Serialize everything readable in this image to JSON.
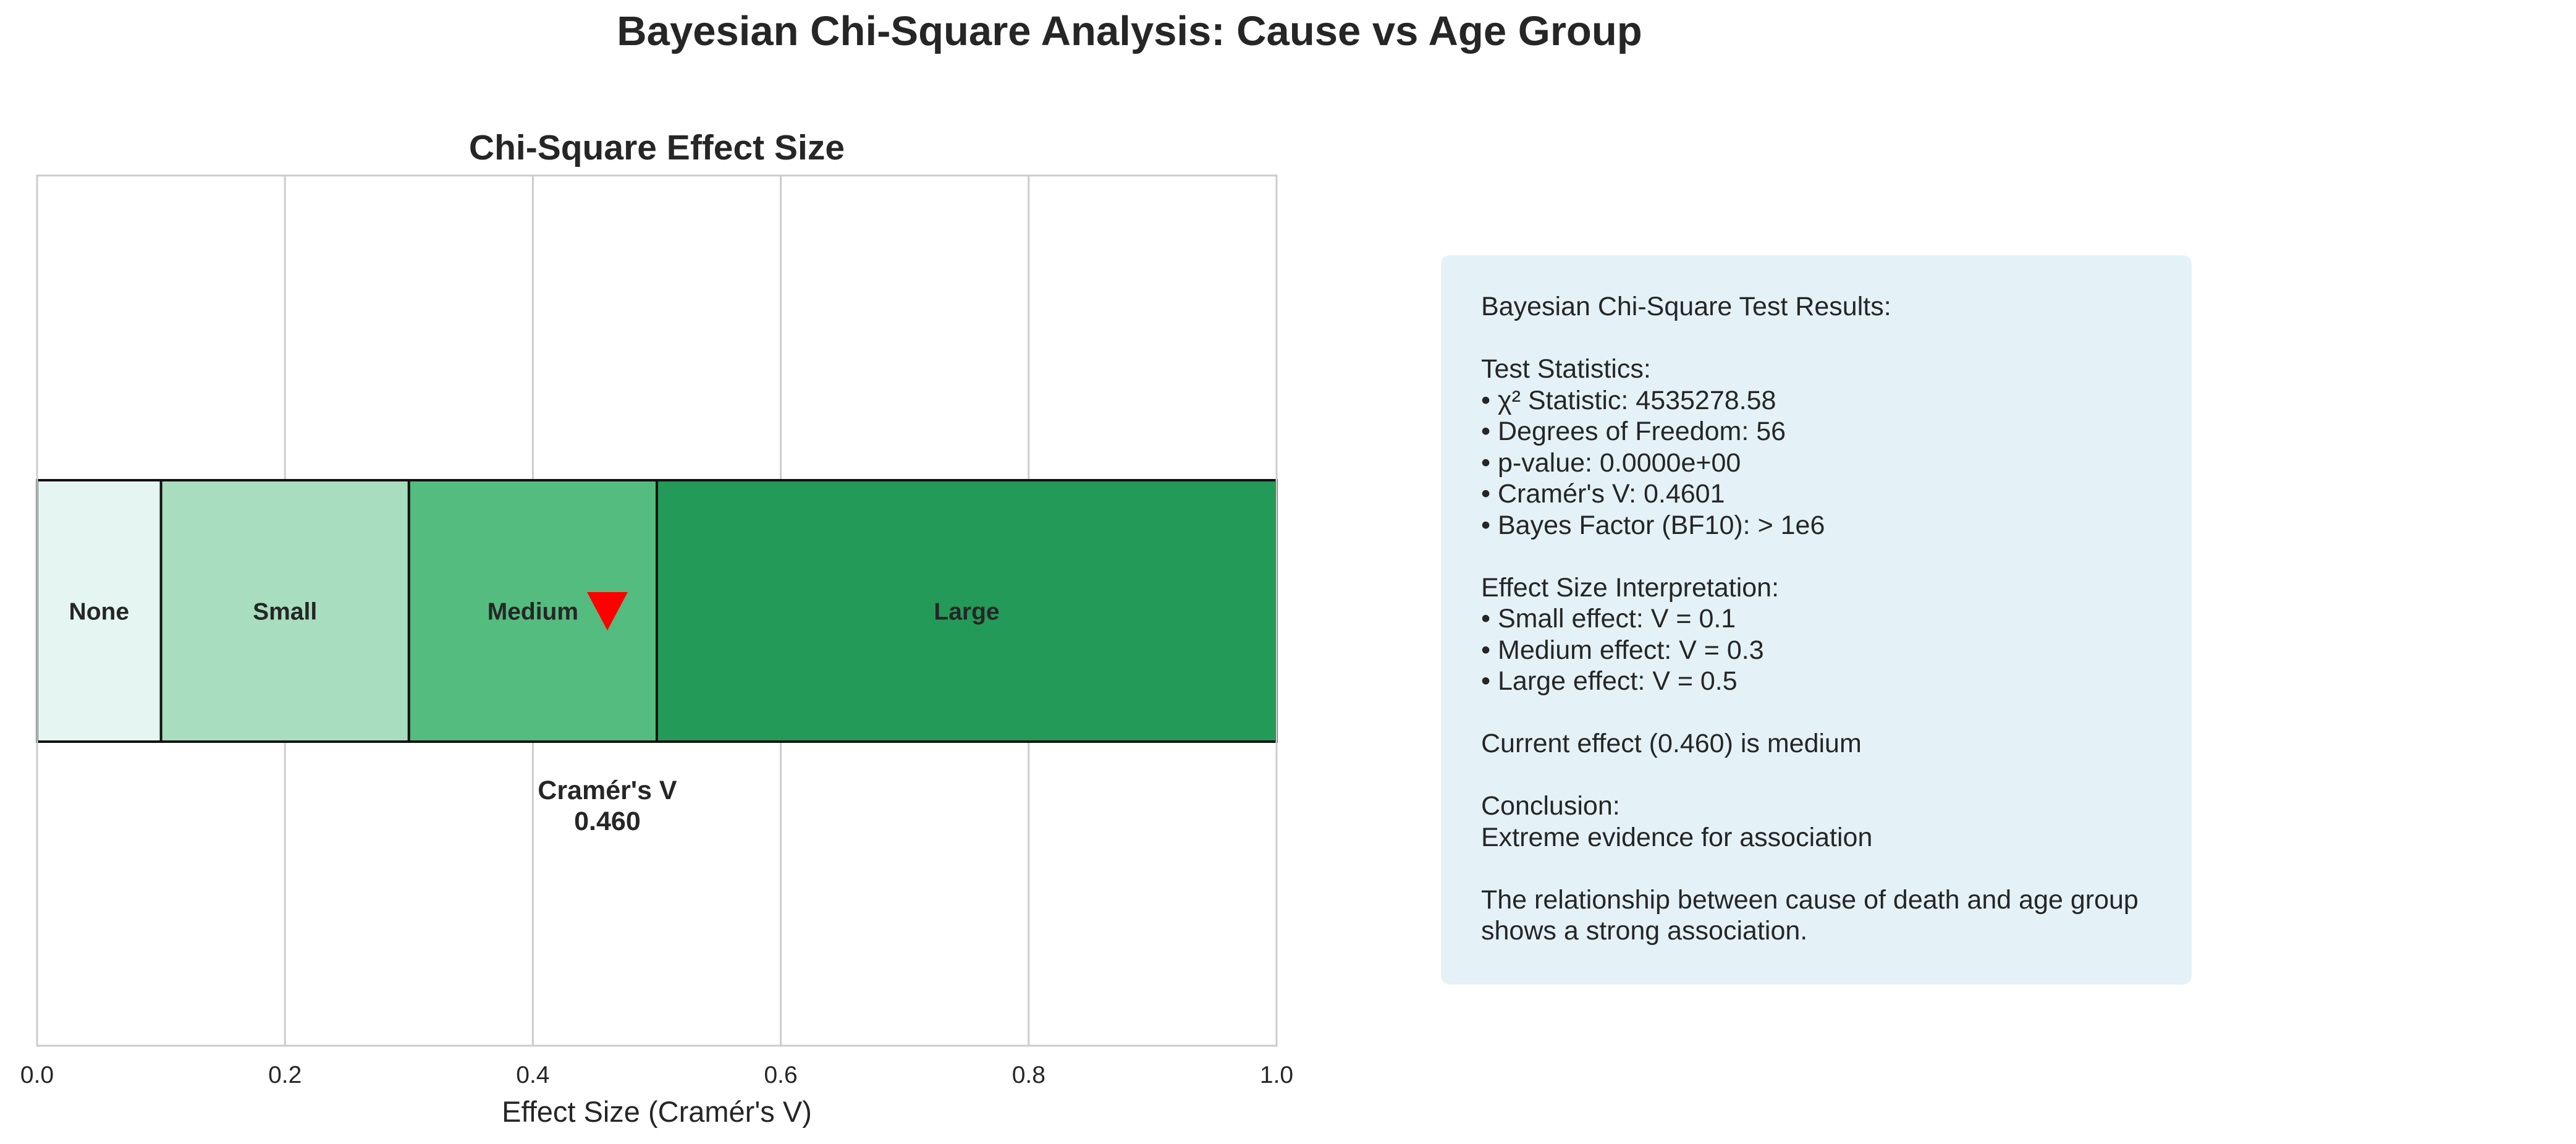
{
  "figure": {
    "suptitle": "Bayesian Chi-Square Analysis: Cause vs Age Group"
  },
  "chart_data": {
    "type": "bar",
    "orientation": "horizontal",
    "title": "Chi-Square Effect Size",
    "xlabel": "Effect Size (Cramér's V)",
    "ylabel": "",
    "xlim": [
      0.0,
      1.0
    ],
    "x_ticks": [
      "0.0",
      "0.2",
      "0.4",
      "0.6",
      "0.8",
      "1.0"
    ],
    "grid": true,
    "segments": [
      {
        "label": "None",
        "start": 0.0,
        "end": 0.1,
        "color": "#e5f5f2"
      },
      {
        "label": "Small",
        "start": 0.1,
        "end": 0.3,
        "color": "#a8debf"
      },
      {
        "label": "Medium",
        "start": 0.3,
        "end": 0.5,
        "color": "#54bc7f"
      },
      {
        "label": "Large",
        "start": 0.5,
        "end": 1.0,
        "color": "#249a59"
      }
    ],
    "marker": {
      "value": 0.4601,
      "color": "#ff0000",
      "shape": "triangle-down"
    },
    "marker_label": {
      "line1": "Cramér's V",
      "line2": "0.460"
    }
  },
  "results": {
    "text": "Bayesian Chi-Square Test Results:\n\nTest Statistics:\n• χ² Statistic: 4535278.58\n• Degrees of Freedom: 56\n• p-value: 0.0000e+00\n• Cramér's V: 0.4601\n• Bayes Factor (BF10): > 1e6\n\nEffect Size Interpretation:\n• Small effect: V = 0.1\n• Medium effect: V = 0.3\n• Large effect: V = 0.5\n\nCurrent effect (0.460) is medium\n\nConclusion:\nExtreme evidence for association\n\nThe relationship between cause of death and age group\nshows a strong association.",
    "background": "#e4f2f7"
  }
}
